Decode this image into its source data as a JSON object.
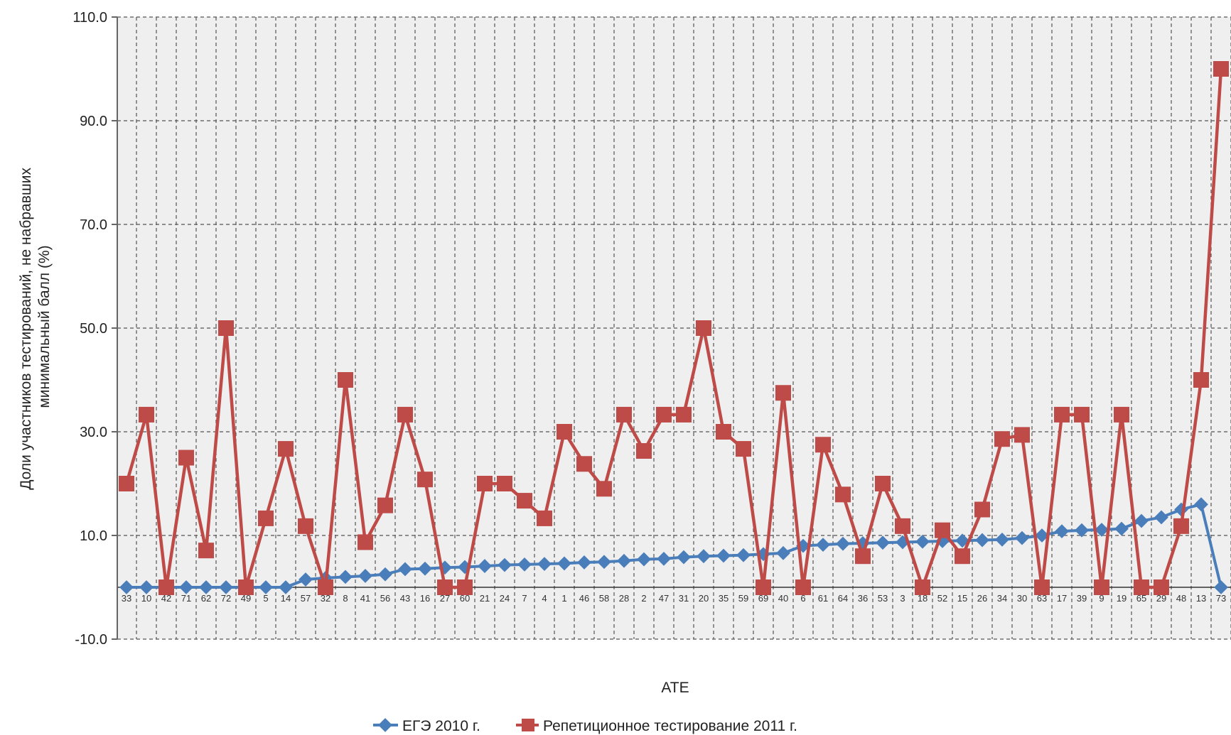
{
  "chart_data": {
    "type": "line",
    "xlabel": "ATE",
    "ylabel_line1": "Доли участников тестирований, не набравших",
    "ylabel_line2": "минимальный балл (%)",
    "ylim": [
      -10,
      110
    ],
    "yticks": [
      "110.0",
      "90.0",
      "70.0",
      "50.0",
      "30.0",
      "10.0",
      "-10.0"
    ],
    "ytick_values": [
      110,
      90,
      70,
      50,
      30,
      10,
      -10
    ],
    "grid": true,
    "legend_position": "bottom",
    "categories": [
      "33",
      "10",
      "42",
      "71",
      "62",
      "72",
      "49",
      "5",
      "14",
      "57",
      "32",
      "8",
      "41",
      "56",
      "43",
      "16",
      "27",
      "60",
      "21",
      "24",
      "7",
      "4",
      "1",
      "46",
      "58",
      "28",
      "2",
      "47",
      "31",
      "20",
      "35",
      "59",
      "69",
      "40",
      "6",
      "61",
      "64",
      "36",
      "53",
      "3",
      "18",
      "52",
      "15",
      "26",
      "34",
      "30",
      "63",
      "17",
      "39",
      "9",
      "19",
      "65",
      "29",
      "48",
      "13",
      "73"
    ],
    "series": [
      {
        "name": "ЕГЭ 2010 г.",
        "color": "#4a7ebb",
        "marker": "diamond",
        "values": [
          0,
          0,
          0,
          0,
          0,
          0,
          0,
          0,
          0,
          1.5,
          1.8,
          2.0,
          2.2,
          2.5,
          3.5,
          3.6,
          3.8,
          3.9,
          4.1,
          4.3,
          4.4,
          4.5,
          4.6,
          4.8,
          4.9,
          5.1,
          5.4,
          5.5,
          5.8,
          6.0,
          6.1,
          6.2,
          6.4,
          6.6,
          8.0,
          8.2,
          8.4,
          8.5,
          8.6,
          8.7,
          8.8,
          8.9,
          9.0,
          9.1,
          9.2,
          9.5,
          10.0,
          10.8,
          11.0,
          11.1,
          11.3,
          12.8,
          13.5,
          15.0,
          16.0,
          0
        ]
      },
      {
        "name": "Репетиционное тестирование 2011 г.",
        "color": "#be4b48",
        "marker": "square",
        "values": [
          20,
          33.3,
          0,
          25,
          7.1,
          50,
          0,
          13.3,
          26.7,
          11.8,
          0,
          40,
          8.7,
          15.8,
          33.3,
          20.8,
          0,
          0,
          20,
          20,
          16.7,
          13.3,
          30,
          23.8,
          19,
          33.3,
          26.3,
          33.3,
          33.3,
          50,
          30,
          26.7,
          0,
          37.5,
          0,
          27.5,
          17.9,
          6,
          20,
          11.8,
          0,
          11,
          6,
          15,
          28.6,
          29.4,
          0,
          33.3,
          33.3,
          0,
          33.3,
          0,
          0,
          11.8,
          40,
          100
        ]
      }
    ]
  }
}
